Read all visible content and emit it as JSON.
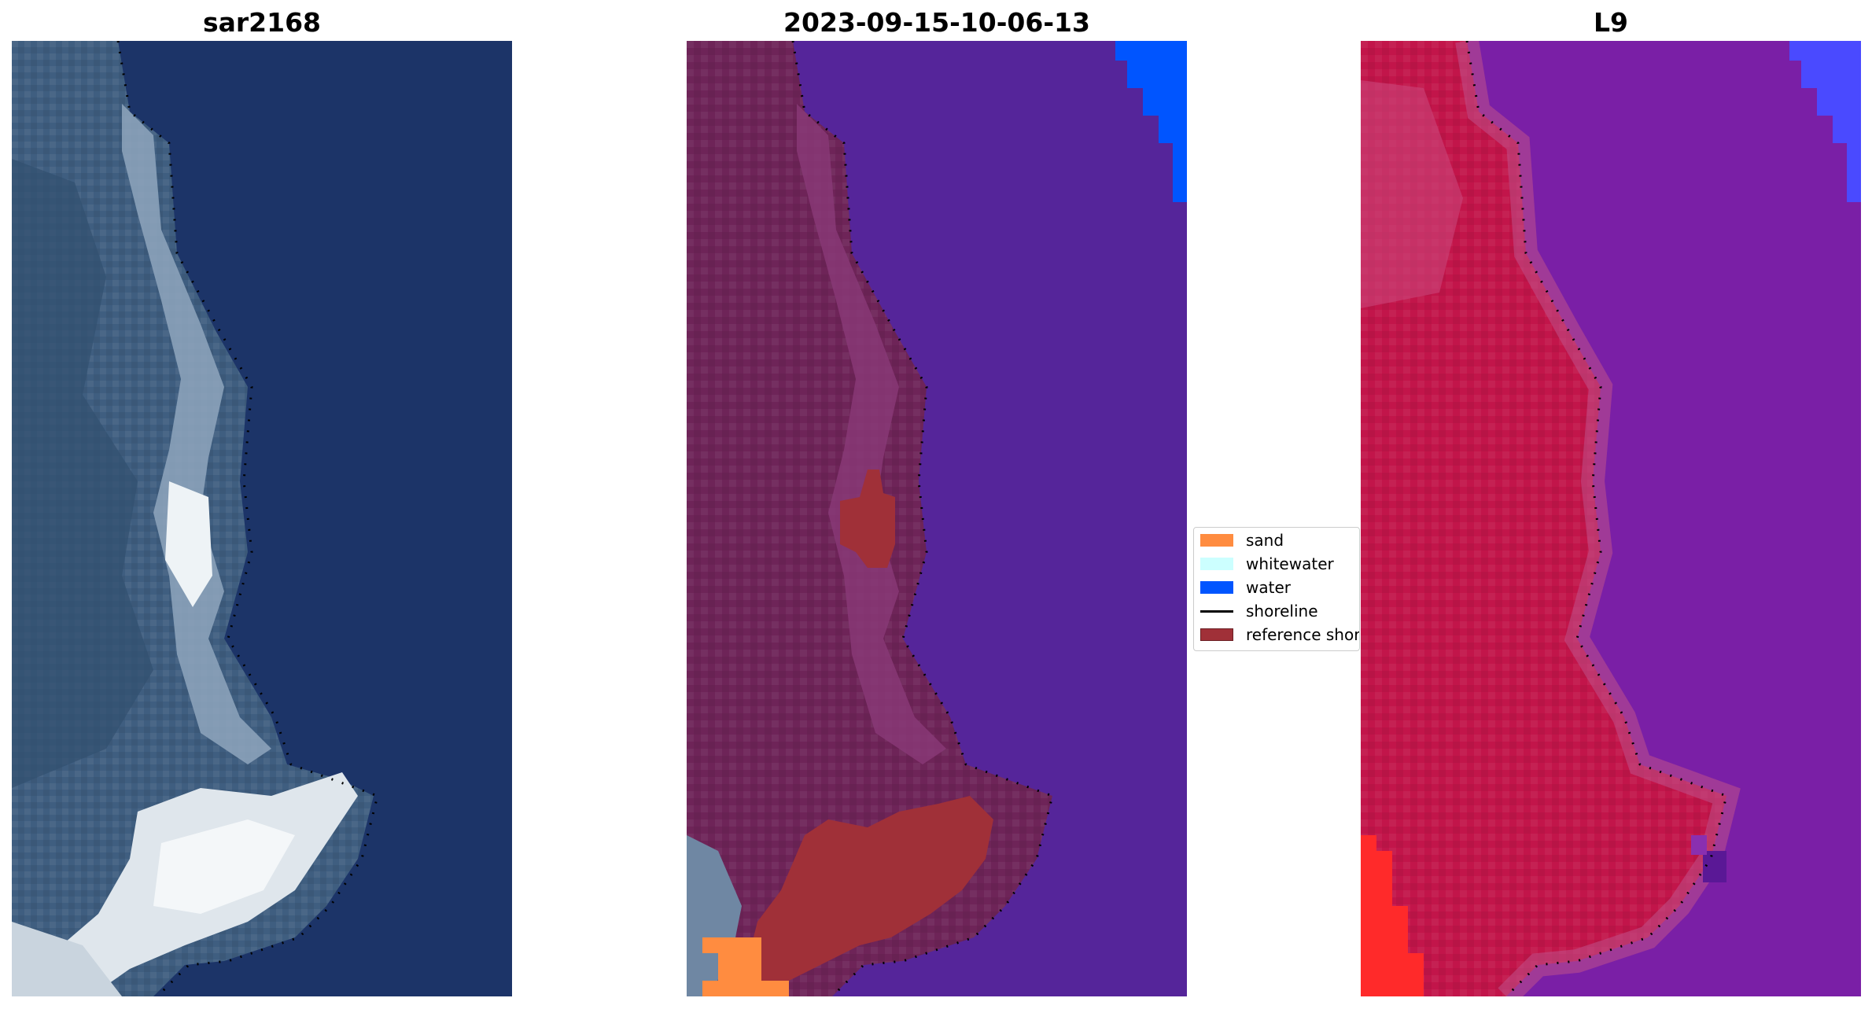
{
  "panels": [
    {
      "title": "sar2168"
    },
    {
      "title": "2023-09-15-10-06-13"
    },
    {
      "title": "L9"
    }
  ],
  "legend": {
    "items": [
      {
        "label": "sand",
        "color": "#ff8c40",
        "kind": "patch"
      },
      {
        "label": "whitewater",
        "color": "#ccffff",
        "kind": "patch"
      },
      {
        "label": "water",
        "color": "#0055ff",
        "kind": "patch"
      },
      {
        "label": "shoreline",
        "color": "#000000",
        "kind": "line"
      },
      {
        "label": "reference shoreline",
        "color": "#a03038",
        "kind": "patch"
      }
    ]
  },
  "colors": {
    "rgb_water": "#1c3468",
    "rgb_land": "#3f5e80",
    "rgb_whitewater": "#e8eef2",
    "class_land": "#6e2458",
    "class_water": "#55259a",
    "class_sand": "#ff8c40",
    "class_blue_water": "#0055ff",
    "class_reference": "#a03038",
    "mndwi_land": "#c2154a",
    "mndwi_water": "#7a1fa6",
    "mndwi_edge": "#4a4aff",
    "mndwi_red": "#ff2a2a"
  }
}
